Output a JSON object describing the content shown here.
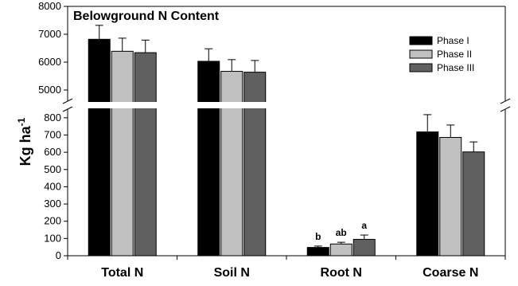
{
  "chart_data": {
    "type": "bar",
    "title": "Belowground N Content",
    "ylabel": "Kg ha",
    "ylabel_sup": "-1",
    "xlabel": "",
    "axis_break": true,
    "lower_ylim": [
      0,
      850
    ],
    "upper_ylim": [
      4600,
      8000
    ],
    "lower_ticks": [
      0,
      100,
      200,
      300,
      400,
      500,
      600,
      700,
      800
    ],
    "upper_ticks": [
      5000,
      6000,
      7000,
      8000
    ],
    "categories": [
      "Total N",
      "Soil N",
      "Root N",
      "Coarse N"
    ],
    "series": [
      {
        "name": "Phase I",
        "color": "#000000",
        "values": [
          6820,
          6030,
          48,
          718
        ],
        "errors": [
          500,
          450,
          8,
          100
        ]
      },
      {
        "name": "Phase II",
        "color": "#c0c0c0",
        "values": [
          6390,
          5670,
          68,
          686
        ],
        "errors": [
          470,
          420,
          10,
          72
        ]
      },
      {
        "name": "Phase III",
        "color": "#606060",
        "values": [
          6340,
          5640,
          95,
          602
        ],
        "errors": [
          450,
          420,
          25,
          58
        ]
      }
    ],
    "annotations": [
      {
        "category": "Root N",
        "series": "Phase I",
        "text": "b"
      },
      {
        "category": "Root N",
        "series": "Phase II",
        "text": "ab"
      },
      {
        "category": "Root N",
        "series": "Phase III",
        "text": "a"
      }
    ],
    "legend_position": "top-right",
    "grid": false
  }
}
